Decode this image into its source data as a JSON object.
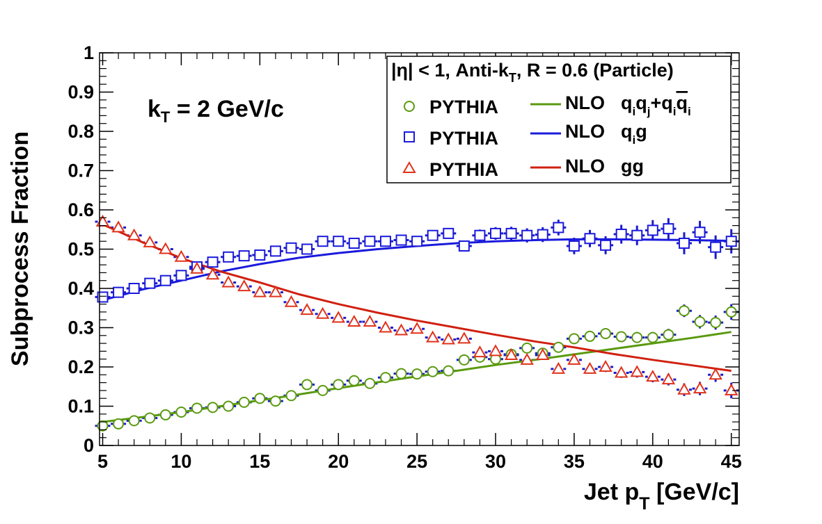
{
  "chart_data": {
    "type": "scatter",
    "annotation": "k_T = 2 GeV/c",
    "xlabel": "Jet p_T [GeV/c]",
    "ylabel": "Subprocess Fraction",
    "xlim": [
      4.8,
      45.5
    ],
    "ylim": [
      0,
      1
    ],
    "xticks": [
      5,
      10,
      15,
      20,
      25,
      30,
      35,
      40,
      45
    ],
    "xtick_labels": [
      "5",
      "10",
      "15",
      "20",
      "25",
      "30",
      "35",
      "40",
      "45"
    ],
    "yticks": [
      0,
      0.1,
      0.2,
      0.3,
      0.4,
      0.5,
      0.6,
      0.7,
      0.8,
      0.9,
      1
    ],
    "ytick_labels": [
      "0",
      "0.1",
      "0.2",
      "0.3",
      "0.4",
      "0.5",
      "0.6",
      "0.7",
      "0.8",
      "0.9",
      "1"
    ],
    "legend": {
      "title": "|η| < 1, Anti-k_T, R = 0.6 (Particle)",
      "position": "top-right",
      "marker_label": "PYTHIA",
      "line_label": "NLO",
      "process_qq": "q_i q_j + q_i q̄_i",
      "process_qg": "q_i g",
      "process_gg": "gg"
    },
    "x": [
      5,
      6,
      7,
      8,
      9,
      10,
      11,
      12,
      13,
      14,
      15,
      16,
      17,
      18,
      19,
      20,
      21,
      22,
      23,
      24,
      25,
      26,
      27,
      28,
      29,
      30,
      31,
      32,
      33,
      34,
      35,
      36,
      37,
      38,
      39,
      40,
      41,
      42,
      43,
      44,
      45
    ],
    "series": [
      {
        "name": "PYTHIA q_i q_j + q_i q̄_i",
        "key": "qq",
        "marker": "circle",
        "color": "#5a9a10",
        "values": [
          0.05,
          0.055,
          0.063,
          0.07,
          0.078,
          0.085,
          0.095,
          0.097,
          0.1,
          0.11,
          0.12,
          0.113,
          0.127,
          0.155,
          0.14,
          0.155,
          0.165,
          0.158,
          0.173,
          0.183,
          0.182,
          0.188,
          0.19,
          0.218,
          0.225,
          0.22,
          0.232,
          0.248,
          0.235,
          0.25,
          0.272,
          0.278,
          0.285,
          0.277,
          0.275,
          0.275,
          0.282,
          0.343,
          0.315,
          0.313,
          0.34
        ],
        "errors": [
          0.005,
          0.005,
          0.005,
          0.005,
          0.005,
          0.005,
          0.005,
          0.005,
          0.005,
          0.005,
          0.006,
          0.006,
          0.006,
          0.006,
          0.006,
          0.006,
          0.006,
          0.006,
          0.006,
          0.006,
          0.007,
          0.007,
          0.008,
          0.008,
          0.009,
          0.009,
          0.01,
          0.01,
          0.011,
          0.011,
          0.012,
          0.012,
          0.013,
          0.013,
          0.014,
          0.014,
          0.015,
          0.016,
          0.017,
          0.018,
          0.02
        ]
      },
      {
        "name": "PYTHIA q_i g",
        "key": "qg",
        "marker": "square",
        "color": "#1a1adc",
        "values": [
          0.378,
          0.39,
          0.4,
          0.413,
          0.42,
          0.433,
          0.455,
          0.467,
          0.48,
          0.483,
          0.485,
          0.495,
          0.503,
          0.5,
          0.52,
          0.52,
          0.515,
          0.52,
          0.52,
          0.523,
          0.52,
          0.535,
          0.54,
          0.508,
          0.535,
          0.54,
          0.54,
          0.535,
          0.537,
          0.555,
          0.508,
          0.527,
          0.51,
          0.538,
          0.535,
          0.548,
          0.552,
          0.515,
          0.543,
          0.505,
          0.52
        ],
        "errors": [
          0.006,
          0.006,
          0.006,
          0.006,
          0.006,
          0.006,
          0.007,
          0.007,
          0.007,
          0.007,
          0.008,
          0.008,
          0.008,
          0.008,
          0.009,
          0.009,
          0.009,
          0.01,
          0.01,
          0.01,
          0.011,
          0.012,
          0.013,
          0.014,
          0.015,
          0.016,
          0.017,
          0.018,
          0.019,
          0.02,
          0.021,
          0.022,
          0.023,
          0.024,
          0.025,
          0.026,
          0.027,
          0.028,
          0.029,
          0.03,
          0.031
        ]
      },
      {
        "name": "PYTHIA gg",
        "key": "gg",
        "marker": "triangle",
        "color": "#e0321a",
        "values": [
          0.57,
          0.555,
          0.535,
          0.517,
          0.5,
          0.48,
          0.45,
          0.435,
          0.415,
          0.405,
          0.39,
          0.39,
          0.365,
          0.345,
          0.335,
          0.325,
          0.315,
          0.315,
          0.3,
          0.293,
          0.297,
          0.275,
          0.27,
          0.272,
          0.237,
          0.24,
          0.23,
          0.218,
          0.23,
          0.195,
          0.218,
          0.195,
          0.2,
          0.185,
          0.187,
          0.175,
          0.168,
          0.142,
          0.145,
          0.18,
          0.14
        ],
        "errors": [
          0.005,
          0.005,
          0.005,
          0.005,
          0.005,
          0.005,
          0.005,
          0.005,
          0.005,
          0.005,
          0.006,
          0.006,
          0.006,
          0.006,
          0.006,
          0.006,
          0.006,
          0.006,
          0.006,
          0.006,
          0.007,
          0.007,
          0.008,
          0.008,
          0.009,
          0.009,
          0.01,
          0.01,
          0.011,
          0.011,
          0.012,
          0.012,
          0.013,
          0.013,
          0.014,
          0.014,
          0.015,
          0.016,
          0.017,
          0.018,
          0.02
        ]
      }
    ],
    "nlo_curves": [
      {
        "name": "NLO q_i q_j + q_i q̄_i",
        "key": "qq",
        "color": "#5a9a10",
        "x": [
          5,
          7.5,
          10,
          12.5,
          15,
          17.5,
          20,
          22.5,
          25,
          27.5,
          30,
          32.5,
          35,
          37.5,
          40,
          42.5,
          45
        ],
        "y": [
          0.06,
          0.072,
          0.085,
          0.1,
          0.115,
          0.13,
          0.146,
          0.161,
          0.176,
          0.19,
          0.205,
          0.218,
          0.232,
          0.246,
          0.26,
          0.274,
          0.289
        ]
      },
      {
        "name": "NLO q_i g",
        "key": "qg",
        "color": "#1a1adc",
        "x": [
          5,
          7.5,
          10,
          12.5,
          15,
          17.5,
          20,
          22.5,
          25,
          27.5,
          30,
          32.5,
          35,
          37.5,
          40,
          42.5,
          45
        ],
        "y": [
          0.37,
          0.397,
          0.42,
          0.443,
          0.462,
          0.478,
          0.49,
          0.5,
          0.508,
          0.515,
          0.52,
          0.523,
          0.525,
          0.525,
          0.524,
          0.523,
          0.521
        ]
      },
      {
        "name": "NLO gg",
        "key": "gg",
        "color": "#d02010",
        "x": [
          5,
          7.5,
          10,
          12.5,
          15,
          17.5,
          20,
          22.5,
          25,
          27.5,
          30,
          32.5,
          35,
          37.5,
          40,
          42.5,
          45
        ],
        "y": [
          0.563,
          0.518,
          0.477,
          0.443,
          0.415,
          0.385,
          0.36,
          0.338,
          0.318,
          0.3,
          0.282,
          0.265,
          0.25,
          0.233,
          0.218,
          0.204,
          0.19
        ]
      }
    ]
  }
}
